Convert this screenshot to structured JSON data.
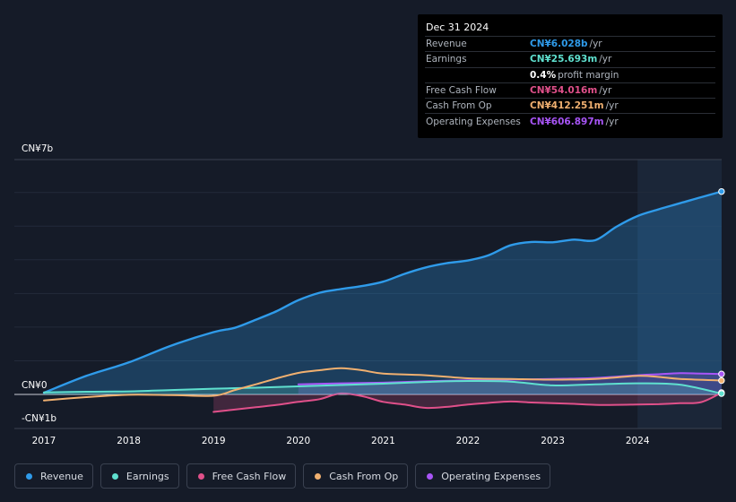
{
  "tooltip": {
    "date": "Dec 31 2024",
    "rows": [
      {
        "label": "Revenue",
        "value": "CN¥6.028b",
        "unit": "/yr",
        "color": "#2f9bea"
      },
      {
        "label": "Earnings",
        "value": "CN¥25.693m",
        "unit": "/yr",
        "color": "#5fe0cf"
      },
      {
        "label": "",
        "value": "0.4%",
        "unit": "profit margin",
        "color": "#ffffff"
      },
      {
        "label": "Free Cash Flow",
        "value": "CN¥54.016m",
        "unit": "/yr",
        "color": "#e0508a"
      },
      {
        "label": "Cash From Op",
        "value": "CN¥412.251m",
        "unit": "/yr",
        "color": "#f0b070"
      },
      {
        "label": "Operating Expenses",
        "value": "CN¥606.897m",
        "unit": "/yr",
        "color": "#a855f7"
      }
    ]
  },
  "legend": [
    {
      "label": "Revenue",
      "color": "#2f9bea"
    },
    {
      "label": "Earnings",
      "color": "#5fe0cf"
    },
    {
      "label": "Free Cash Flow",
      "color": "#e0508a"
    },
    {
      "label": "Cash From Op",
      "color": "#f0b070"
    },
    {
      "label": "Operating Expenses",
      "color": "#a855f7"
    }
  ],
  "chart_data": {
    "type": "line",
    "title": "",
    "xlabel": "",
    "ylabel": "",
    "y_axis_labels": [
      "CN¥7b",
      "CN¥0",
      "-CN¥1b"
    ],
    "x_tick_labels": [
      "2017",
      "2018",
      "2019",
      "2020",
      "2021",
      "2022",
      "2023",
      "2024"
    ],
    "xlim": [
      2017.0,
      2025.0
    ],
    "ylim": [
      -1.0,
      7.0
    ],
    "y_unit": "CN¥ billions",
    "highlight_start": 2024.0,
    "series": [
      {
        "name": "Revenue",
        "color": "#2f9bea",
        "fill": true,
        "x": [
          2017.0,
          2017.5,
          2018.0,
          2018.5,
          2019.0,
          2019.25,
          2019.5,
          2019.75,
          2020.0,
          2020.25,
          2020.5,
          2020.75,
          2021.0,
          2021.25,
          2021.5,
          2021.75,
          2022.0,
          2022.25,
          2022.5,
          2022.75,
          2023.0,
          2023.25,
          2023.5,
          2023.75,
          2024.0,
          2024.25,
          2024.5,
          2024.75,
          2024.99
        ],
        "y": [
          0.05,
          0.55,
          0.95,
          1.45,
          1.85,
          1.98,
          2.22,
          2.48,
          2.8,
          3.02,
          3.13,
          3.22,
          3.35,
          3.58,
          3.77,
          3.9,
          3.98,
          4.14,
          4.43,
          4.53,
          4.52,
          4.6,
          4.58,
          4.98,
          5.3,
          5.5,
          5.68,
          5.86,
          6.028
        ]
      },
      {
        "name": "Earnings",
        "color": "#5fe0cf",
        "fill": true,
        "x": [
          2017.0,
          2017.5,
          2018.0,
          2018.5,
          2019.0,
          2019.5,
          2020.0,
          2020.5,
          2021.0,
          2021.5,
          2022.0,
          2022.5,
          2023.0,
          2023.5,
          2024.0,
          2024.5,
          2024.99
        ],
        "y": [
          0.06,
          0.08,
          0.09,
          0.13,
          0.17,
          0.2,
          0.24,
          0.28,
          0.32,
          0.37,
          0.4,
          0.38,
          0.27,
          0.3,
          0.33,
          0.29,
          0.026
        ]
      },
      {
        "name": "Free Cash Flow",
        "color": "#e0508a",
        "fill": true,
        "x": [
          2019.0,
          2019.25,
          2019.5,
          2019.75,
          2020.0,
          2020.25,
          2020.5,
          2020.75,
          2021.0,
          2021.25,
          2021.5,
          2021.75,
          2022.0,
          2022.25,
          2022.5,
          2022.75,
          2023.0,
          2023.25,
          2023.5,
          2023.75,
          2024.0,
          2024.25,
          2024.5,
          2024.75,
          2024.99
        ],
        "y": [
          -0.52,
          -0.45,
          -0.38,
          -0.31,
          -0.22,
          -0.14,
          0.03,
          -0.05,
          -0.22,
          -0.3,
          -0.4,
          -0.37,
          -0.3,
          -0.25,
          -0.21,
          -0.24,
          -0.26,
          -0.28,
          -0.31,
          -0.31,
          -0.3,
          -0.29,
          -0.26,
          -0.23,
          0.054
        ]
      },
      {
        "name": "Cash From Op",
        "color": "#f0b070",
        "fill": false,
        "x": [
          2017.0,
          2017.5,
          2018.0,
          2018.5,
          2019.0,
          2019.25,
          2019.5,
          2019.75,
          2020.0,
          2020.25,
          2020.5,
          2020.75,
          2021.0,
          2021.5,
          2022.0,
          2022.5,
          2023.0,
          2023.5,
          2024.0,
          2024.25,
          2024.5,
          2024.99
        ],
        "y": [
          -0.18,
          -0.08,
          -0.01,
          -0.02,
          -0.04,
          0.13,
          0.3,
          0.48,
          0.64,
          0.72,
          0.78,
          0.72,
          0.62,
          0.57,
          0.48,
          0.46,
          0.44,
          0.46,
          0.55,
          0.52,
          0.46,
          0.412
        ]
      },
      {
        "name": "Operating Expenses",
        "color": "#a855f7",
        "fill": true,
        "x": [
          2020.0,
          2020.5,
          2021.0,
          2021.5,
          2022.0,
          2022.5,
          2023.0,
          2023.5,
          2024.0,
          2024.25,
          2024.5,
          2024.75,
          2024.99
        ],
        "y": [
          0.3,
          0.33,
          0.35,
          0.39,
          0.42,
          0.44,
          0.46,
          0.49,
          0.57,
          0.6,
          0.63,
          0.62,
          0.607
        ]
      }
    ]
  }
}
